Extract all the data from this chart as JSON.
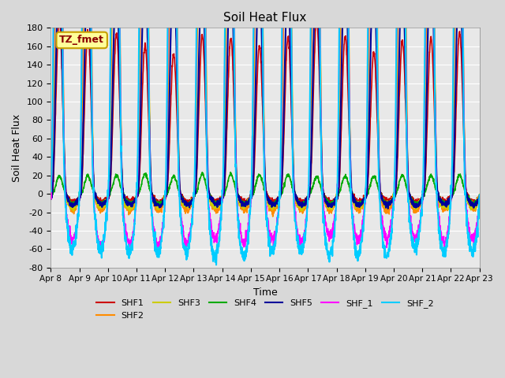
{
  "title": "Soil Heat Flux",
  "ylabel": "Soil Heat Flux",
  "xlabel": "Time",
  "ylim": [
    -80,
    180
  ],
  "annotation": "TZ_fmet",
  "annotation_color": "#8B0000",
  "annotation_bg": "#FFFF99",
  "annotation_border": "#C8A000",
  "fig_bg": "#D8D8D8",
  "plot_bg": "#E8E8E8",
  "series": {
    "SHF1": {
      "color": "#CC0000",
      "lw": 1.2
    },
    "SHF2": {
      "color": "#FF8C00",
      "lw": 1.2
    },
    "SHF3": {
      "color": "#CCCC00",
      "lw": 1.2
    },
    "SHF4": {
      "color": "#00AA00",
      "lw": 1.2
    },
    "SHF5": {
      "color": "#000099",
      "lw": 1.5
    },
    "SHF_1": {
      "color": "#FF00FF",
      "lw": 1.2
    },
    "SHF_2": {
      "color": "#00CCFF",
      "lw": 1.5
    }
  },
  "xtick_labels": [
    "Apr 8",
    "Apr 9",
    "Apr 10",
    "Apr 11",
    "Apr 12",
    "Apr 13",
    "Apr 14",
    "Apr 15",
    "Apr 16",
    "Apr 17",
    "Apr 18",
    "Apr 19",
    "Apr 20",
    "Apr 21",
    "Apr 22",
    "Apr 23"
  ],
  "ytick_values": [
    -80,
    -60,
    -40,
    -20,
    0,
    20,
    40,
    60,
    80,
    100,
    120,
    140,
    160,
    180
  ],
  "n_days": 15,
  "points_per_day": 144
}
